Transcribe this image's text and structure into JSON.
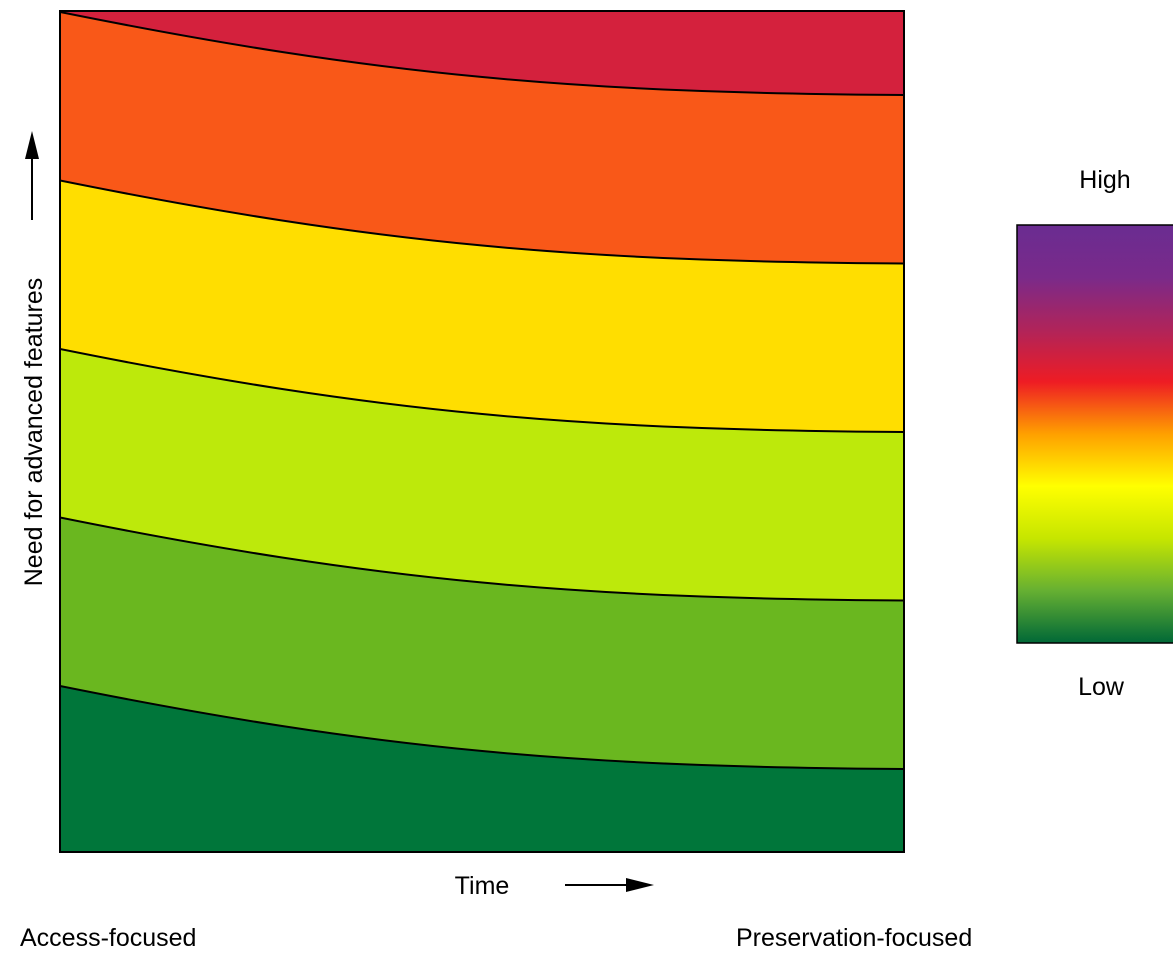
{
  "chart_data": {
    "type": "heatmap",
    "xlabel": "Time",
    "ylabel": "Need for advanced features",
    "x_end_labels": {
      "left": "Access-focused",
      "right": "Preservation-focused"
    },
    "colorbar": {
      "high_label": "High",
      "low_label": "Low",
      "stops": [
        "#006837",
        "#66b032",
        "#c6e600",
        "#ffff00",
        "#ffa000",
        "#ee1c24",
        "#b0245a",
        "#7a2a8a",
        "#6a2c91"
      ]
    },
    "bands": [
      {
        "level": 1,
        "color": "#00763a"
      },
      {
        "level": 2,
        "color": "#6ab71f"
      },
      {
        "level": 3,
        "color": "#bde90b"
      },
      {
        "level": 4,
        "color": "#ffde00"
      },
      {
        "level": 5,
        "color": "#f95818"
      },
      {
        "level": 6,
        "color": "#d4213d"
      },
      {
        "level": 7,
        "color": "#b52557"
      },
      {
        "level": 8,
        "color": "#6a2c91"
      }
    ],
    "contours": 7,
    "axis_ticks": false,
    "grid": false,
    "legend_position": "right"
  }
}
